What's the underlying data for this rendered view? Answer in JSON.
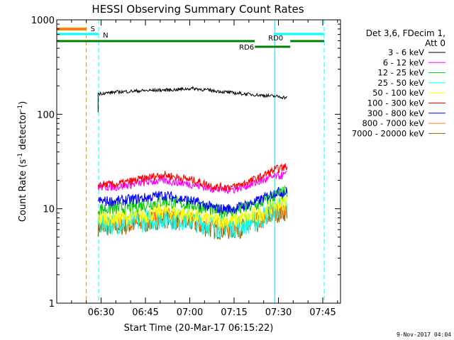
{
  "chart_data": {
    "type": "line",
    "title": "HESSI Observing Summary Count Rates",
    "xlabel": "Start Time (20-Mar-17 06:15:22)",
    "ylabel_main": "Count Rate (s",
    "ylabel_sup1": "-1",
    "ylabel_mid": " detector",
    "ylabel_sup2": "-1",
    "ylabel_end": ")",
    "y_scale": "log",
    "ylim": [
      1,
      1000
    ],
    "xlim_minutes": [
      0,
      96
    ],
    "x_ticks": [
      {
        "minute": 15,
        "label": "06:30"
      },
      {
        "minute": 30,
        "label": "06:45"
      },
      {
        "minute": 45,
        "label": "07:00"
      },
      {
        "minute": 60,
        "label": "07:15"
      },
      {
        "minute": 75,
        "label": "07:30"
      },
      {
        "minute": 90,
        "label": "07:45"
      }
    ],
    "y_ticks": [
      {
        "value": 1,
        "label": "1"
      },
      {
        "value": 10,
        "label": "10"
      },
      {
        "value": 100,
        "label": "100"
      },
      {
        "value": 1000,
        "label": "1000"
      }
    ],
    "legend_header": [
      "Det 3,6, FDecim 1,",
      "Att 0"
    ],
    "legend_position": "right",
    "data_start_minute": 14,
    "data_end_minute": 78,
    "series": [
      {
        "name": "3 - 6 keV",
        "color": "#000000",
        "x": [
          14,
          20,
          30,
          40,
          46,
          50,
          60,
          68,
          74,
          78
        ],
        "values": [
          165,
          172,
          178,
          182,
          188,
          182,
          168,
          160,
          155,
          150
        ]
      },
      {
        "name": "6 - 12 keV",
        "color": "#ff00ff",
        "x": [
          14,
          20,
          30,
          36,
          46,
          54,
          60,
          68,
          74,
          78
        ],
        "values": [
          17,
          17,
          19,
          20,
          18,
          16,
          16,
          19,
          22,
          23
        ]
      },
      {
        "name": "12 - 25 keV",
        "color": "#00cc00",
        "x": [
          14,
          20,
          30,
          36,
          46,
          54,
          60,
          68,
          74,
          78
        ],
        "values": [
          10,
          10,
          11,
          12,
          11,
          9.5,
          9.5,
          11,
          14,
          15
        ]
      },
      {
        "name": "25 - 50 keV",
        "color": "#00ffff",
        "x": [
          14,
          20,
          30,
          36,
          46,
          54,
          60,
          68,
          74,
          78
        ],
        "values": [
          7,
          7,
          7.5,
          8,
          7.5,
          6.5,
          6.5,
          7.5,
          10,
          11
        ]
      },
      {
        "name": "50 - 100 keV",
        "color": "#ffff00",
        "x": [
          14,
          20,
          30,
          36,
          46,
          54,
          60,
          68,
          74,
          78
        ],
        "values": [
          8,
          8,
          8.5,
          9.5,
          8.5,
          7.5,
          7.5,
          8.5,
          11,
          12
        ]
      },
      {
        "name": "100 - 300 keV",
        "color": "#ff0000",
        "x": [
          14,
          20,
          30,
          36,
          46,
          54,
          60,
          68,
          74,
          78
        ],
        "values": [
          18,
          18,
          21,
          23,
          20,
          17,
          17,
          21,
          26,
          28
        ]
      },
      {
        "name": "300 - 800 keV",
        "color": "#0000ff",
        "x": [
          14,
          20,
          30,
          36,
          46,
          54,
          60,
          68,
          74,
          78
        ],
        "values": [
          12,
          12,
          13,
          14,
          12,
          10,
          10,
          12,
          15,
          15
        ]
      },
      {
        "name": "800 - 7000 keV",
        "color": "#ff8000",
        "x": [
          14,
          20,
          30,
          36,
          46,
          54,
          60,
          68,
          74,
          78
        ],
        "values": [
          7,
          7,
          7.5,
          8.5,
          7.5,
          6.5,
          6.5,
          7.5,
          9.5,
          10
        ]
      },
      {
        "name": "7000 - 20000 keV",
        "color": "#996600",
        "x": [
          14,
          20,
          30,
          36,
          46,
          54,
          60,
          68,
          74,
          78
        ],
        "values": [
          6.5,
          6.5,
          7,
          8,
          7,
          6,
          6,
          7,
          9,
          9.5
        ]
      }
    ],
    "vertical_markers": [
      {
        "minute": 0,
        "color": "#00ffff",
        "style": "solid"
      },
      {
        "minute": 10,
        "color": "#ff8000",
        "style": "dashed"
      },
      {
        "minute": 14.2,
        "color": "#00ffff",
        "style": "dashed"
      },
      {
        "minute": 73.8,
        "color": "#00ffff",
        "style": "solid"
      },
      {
        "minute": 90.5,
        "color": "#00ffff",
        "style": "dashed"
      }
    ],
    "flag_bars": [
      {
        "label": "S",
        "color": "#ff8000",
        "x_start": 0,
        "x_end": 10,
        "level": 1
      },
      {
        "label": "N",
        "color": "#00ffff",
        "x_start": 0,
        "x_end": 14.2,
        "level": 2
      },
      {
        "label": "",
        "color": "#00ffff",
        "x_start": 73.8,
        "x_end": 90.5,
        "level": 2
      },
      {
        "label": "",
        "color": "#008000",
        "x_start": 0,
        "x_end": 67,
        "level": 3
      },
      {
        "label": "RD0",
        "color": "#008000",
        "x_start": 79,
        "x_end": 90.5,
        "level": 3
      },
      {
        "label": "RD6",
        "color": "#008000",
        "x_start": 67,
        "x_end": 79,
        "level": 4
      }
    ],
    "timestamp": "9-Nov-2017 04:04"
  }
}
